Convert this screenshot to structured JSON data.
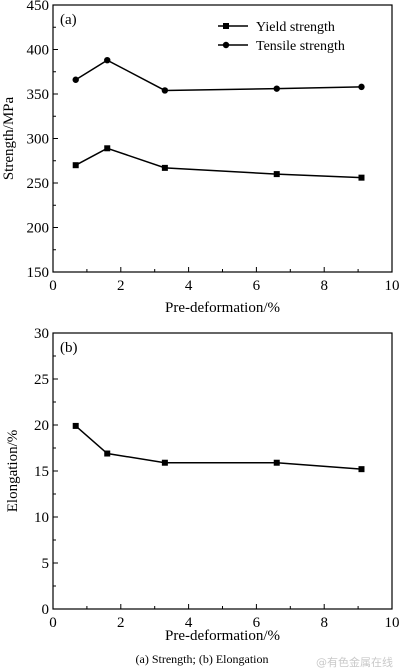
{
  "caption": "(a)  Strength; (b) Elongation",
  "watermark": "@有色金属在线",
  "chart_data": [
    {
      "type": "line",
      "panel_label": "(a)",
      "xlabel": "Pre-deformation/%",
      "ylabel": "Strength/MPa",
      "xlim": [
        0,
        10
      ],
      "ylim": [
        150,
        450
      ],
      "xticks": [
        0,
        2,
        4,
        6,
        8,
        10
      ],
      "yticks": [
        150,
        200,
        250,
        300,
        350,
        400,
        450
      ],
      "grid": false,
      "legend_position": "top-right",
      "series": [
        {
          "name": "Yield strength",
          "marker": "square",
          "x": [
            0.67,
            1.6,
            3.3,
            6.6,
            9.1
          ],
          "y": [
            270,
            289,
            267,
            260,
            256
          ]
        },
        {
          "name": "Tensile strength",
          "marker": "circle",
          "x": [
            0.67,
            1.6,
            3.3,
            6.6,
            9.1
          ],
          "y": [
            366,
            388,
            354,
            356,
            358
          ]
        }
      ]
    },
    {
      "type": "line",
      "panel_label": "(b)",
      "xlabel": "Pre-deformation/%",
      "ylabel": "Elongation/%",
      "xlim": [
        0,
        10
      ],
      "ylim": [
        0,
        30
      ],
      "xticks": [
        0,
        2,
        4,
        6,
        8,
        10
      ],
      "yticks": [
        0,
        5,
        10,
        15,
        20,
        25,
        30
      ],
      "grid": false,
      "series": [
        {
          "marker": "square",
          "x": [
            0.67,
            1.6,
            3.3,
            6.6,
            9.1
          ],
          "y": [
            19.9,
            16.9,
            15.9,
            15.9,
            15.2
          ]
        }
      ]
    }
  ]
}
